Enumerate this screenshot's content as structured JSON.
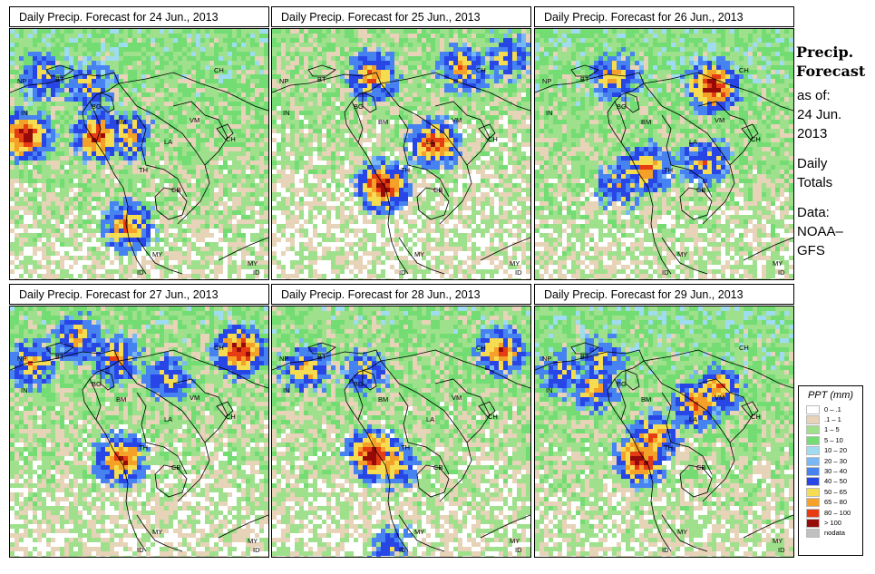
{
  "panels": [
    {
      "title": "Daily Precip. Forecast for  24 Jun., 2013",
      "seed": 11,
      "storms": [
        [
          0.05,
          0.42,
          0.9
        ],
        [
          0.33,
          0.42,
          0.8
        ],
        [
          0.45,
          0.42,
          0.6
        ],
        [
          0.45,
          0.78,
          0.7
        ],
        [
          0.3,
          0.22,
          0.5
        ],
        [
          0.12,
          0.18,
          0.5
        ]
      ],
      "wet": 0.55
    },
    {
      "title": "Daily Precip. Forecast for  25 Jun., 2013",
      "seed": 23,
      "storms": [
        [
          0.42,
          0.62,
          0.9
        ],
        [
          0.62,
          0.45,
          0.8
        ],
        [
          0.38,
          0.18,
          0.7
        ],
        [
          0.73,
          0.15,
          0.6
        ],
        [
          0.9,
          0.1,
          0.5
        ]
      ],
      "wet": 0.45
    },
    {
      "title": "Daily Precip. Forecast for  26 Jun., 2013",
      "seed": 37,
      "storms": [
        [
          0.68,
          0.22,
          0.9
        ],
        [
          0.42,
          0.55,
          0.7
        ],
        [
          0.65,
          0.52,
          0.6
        ],
        [
          0.3,
          0.18,
          0.6
        ],
        [
          0.32,
          0.62,
          0.5
        ]
      ],
      "wet": 0.55
    },
    {
      "title": "Daily Precip. Forecast for  27 Jun., 2013",
      "seed": 41,
      "storms": [
        [
          0.88,
          0.17,
          0.9
        ],
        [
          0.42,
          0.6,
          0.8
        ],
        [
          0.25,
          0.12,
          0.6
        ],
        [
          0.08,
          0.22,
          0.6
        ],
        [
          0.4,
          0.2,
          0.6
        ],
        [
          0.6,
          0.28,
          0.5
        ]
      ],
      "wet": 0.5
    },
    {
      "title": "Daily Precip. Forecast for  28 Jun., 2013",
      "seed": 53,
      "storms": [
        [
          0.38,
          0.58,
          0.9
        ],
        [
          0.45,
          0.62,
          0.7
        ],
        [
          0.88,
          0.17,
          0.7
        ],
        [
          0.12,
          0.24,
          0.6
        ],
        [
          0.35,
          0.25,
          0.5
        ],
        [
          0.45,
          0.95,
          0.4
        ]
      ],
      "wet": 0.5
    },
    {
      "title": "Daily Precip. Forecast for  29 Jun., 2013",
      "seed": 67,
      "storms": [
        [
          0.4,
          0.6,
          0.9
        ],
        [
          0.45,
          0.52,
          0.7
        ],
        [
          0.62,
          0.38,
          0.7
        ],
        [
          0.7,
          0.32,
          0.7
        ],
        [
          0.22,
          0.32,
          0.6
        ],
        [
          0.1,
          0.26,
          0.5
        ],
        [
          0.25,
          0.2,
          0.5
        ]
      ],
      "wet": 0.55
    }
  ],
  "country_labels": [
    "NP",
    "BT",
    "BG",
    "IN",
    "CH",
    "BM",
    "VM",
    "LA",
    "CH",
    "TH",
    "CB",
    "MY",
    "MY",
    "ID",
    "ID"
  ],
  "side_panel": {
    "title_line1": "Precip.",
    "title_line2": "Forecast",
    "asof_label": "as of:",
    "asof_date_line1": "24 Jun.",
    "asof_date_line2": "2013",
    "totals_line1": "Daily",
    "totals_line2": "Totals",
    "data_line1": "Data:",
    "data_line2": "NOAA–",
    "data_line3": "GFS"
  },
  "legend": {
    "title": "PPT (mm)",
    "entries": [
      {
        "label": "0 – .1",
        "color": "#ffffff"
      },
      {
        "label": ".1 – 1",
        "color": "#e6d3b8"
      },
      {
        "label": "1 – 5",
        "color": "#9ee08c"
      },
      {
        "label": "5 – 10",
        "color": "#73dc73"
      },
      {
        "label": "10 – 20",
        "color": "#9fdcf0"
      },
      {
        "label": "20 – 30",
        "color": "#7ab8f5"
      },
      {
        "label": "30 – 40",
        "color": "#4682f0"
      },
      {
        "label": "40 – 50",
        "color": "#2846e6"
      },
      {
        "label": "50 – 65",
        "color": "#f5dc50"
      },
      {
        "label": "65 – 80",
        "color": "#f5a028"
      },
      {
        "label": "80 – 100",
        "color": "#e63c14"
      },
      {
        "label": "> 100",
        "color": "#960a0a"
      },
      {
        "label": "nodata",
        "color": "#c0c0c0"
      }
    ]
  }
}
